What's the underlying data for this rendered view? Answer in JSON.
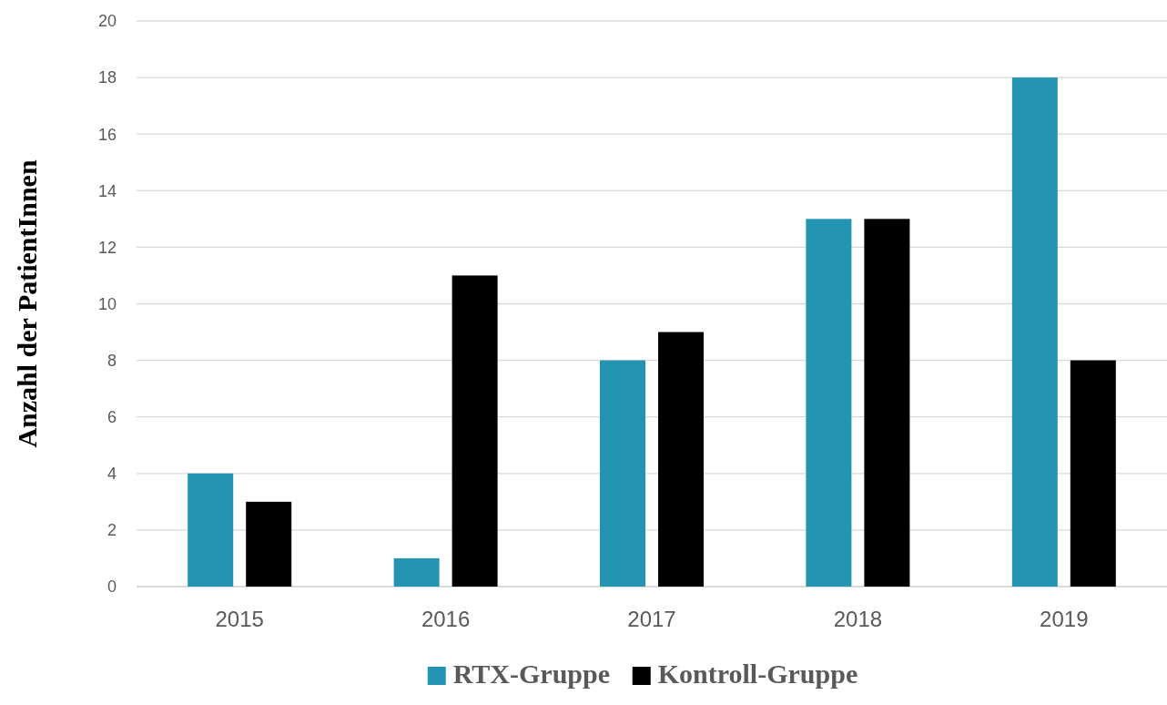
{
  "chart_data": {
    "type": "bar",
    "ylabel": "Anzahl der PatientInnen",
    "categories": [
      "2015",
      "2016",
      "2017",
      "2018",
      "2019"
    ],
    "series": [
      {
        "name": "RTX-Gruppe",
        "color": "#2394b1",
        "values": [
          4,
          1,
          8,
          13,
          18
        ]
      },
      {
        "name": "Kontroll-Gruppe",
        "color": "#000000",
        "values": [
          3,
          11,
          9,
          13,
          8
        ]
      }
    ],
    "ylim": [
      0,
      20
    ],
    "yticks": [
      0,
      2,
      4,
      6,
      8,
      10,
      12,
      14,
      16,
      18,
      20
    ],
    "grid": "y",
    "legend": "bottom"
  }
}
